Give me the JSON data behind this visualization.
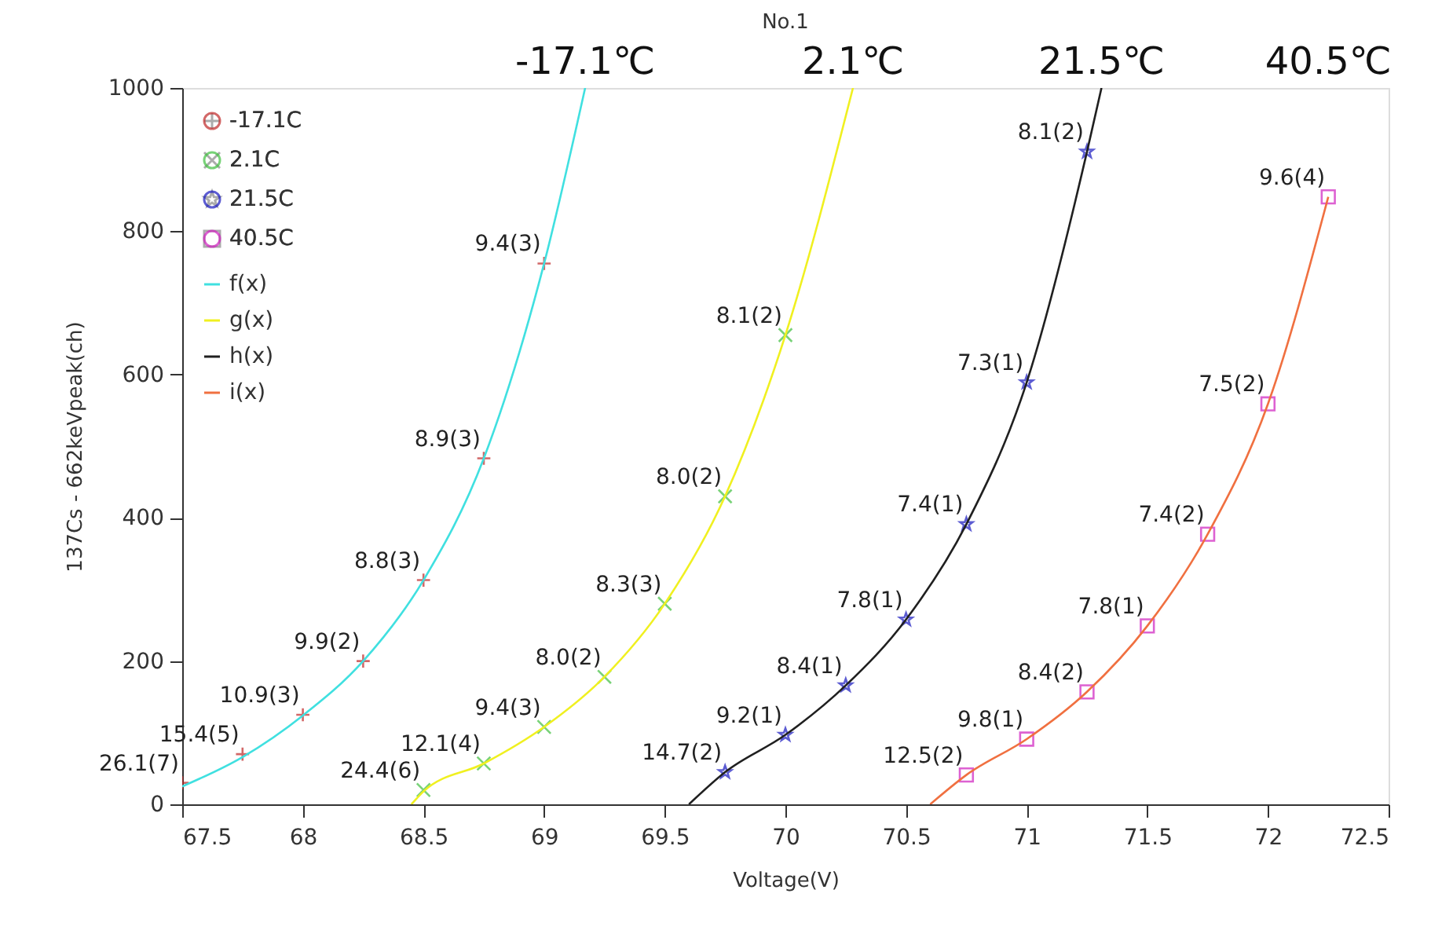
{
  "chart_data": {
    "type": "scatter",
    "title": "No.1",
    "xlabel": "Voltage(V)",
    "ylabel": "137Cs - 662keVpeak(ch)",
    "xlim": [
      67.5,
      72.5
    ],
    "xticks": [
      67.5,
      68,
      68.5,
      69,
      69.5,
      70,
      70.5,
      71,
      71.5,
      72,
      72.5
    ],
    "ylim": [
      0,
      1000
    ],
    "yticks": [
      0,
      200,
      400,
      600,
      800,
      1000
    ],
    "grid": false,
    "legend": "top left",
    "series": [
      {
        "name": "-17.1C",
        "marker": "cross",
        "color": "#c02828",
        "x": [
          67.5,
          67.75,
          68,
          68.25,
          68.5,
          68.75,
          69
        ],
        "values": [
          30,
          70,
          125,
          200,
          313,
          483,
          755
        ],
        "value_labels": [
          "26.1(7)",
          "15.4(5)",
          "10.9(3)",
          "9.9(2)",
          "8.8(3)",
          "8.9(3)",
          "9.4(3)"
        ]
      },
      {
        "name": "2.1C",
        "marker": "x",
        "color": "#40c040",
        "x": [
          68.5,
          68.75,
          69,
          69.25,
          69.5,
          69.75,
          70
        ],
        "values": [
          20,
          57,
          108,
          178,
          280,
          430,
          655
        ],
        "value_labels": [
          "24.4(6)",
          "12.1(4)",
          "9.4(3)",
          "8.0(2)",
          "8.3(3)",
          "8.0(2)",
          "8.1(2)"
        ]
      },
      {
        "name": "21.5C",
        "marker": "star",
        "color": "#1818c0",
        "x": [
          69.75,
          70,
          70.25,
          70.5,
          70.75,
          71,
          71.25
        ],
        "values": [
          45,
          97,
          166,
          258,
          391,
          589,
          911
        ],
        "value_labels": [
          "14.7(2)",
          "9.2(1)",
          "8.4(1)",
          "7.8(1)",
          "7.4(1)",
          "7.3(1)",
          "8.1(2)"
        ]
      },
      {
        "name": "40.5C",
        "marker": "square",
        "color": "#d020c0",
        "x": [
          70.75,
          71,
          71.25,
          71.5,
          71.75,
          72,
          72.25
        ],
        "values": [
          41,
          91,
          157,
          249,
          377,
          559,
          848
        ],
        "value_labels": [
          "12.5(2)",
          "9.8(1)",
          "8.4(2)",
          "7.8(1)",
          "7.4(2)",
          "7.5(2)",
          "9.6(4)"
        ]
      },
      {
        "name": "f(x)",
        "type": "line",
        "marker": "none",
        "line_style": "solid",
        "color": "#40e0e0",
        "x": [
          67.5,
          67.75,
          68,
          68.25,
          68.5,
          68.75,
          69,
          69.17
        ],
        "values": [
          25,
          66,
          124,
          200,
          313,
          483,
          755,
          1000
        ]
      },
      {
        "name": "g(x)",
        "type": "line",
        "marker": "none",
        "line_style": "solid",
        "color": "#f0f020",
        "x": [
          68.45,
          68.5,
          68.75,
          69,
          69.25,
          69.5,
          69.75,
          70,
          70.28
        ],
        "values": [
          0,
          18,
          57,
          108,
          178,
          280,
          430,
          655,
          1000
        ]
      },
      {
        "name": "h(x)",
        "type": "line",
        "marker": "none",
        "line_style": "solid",
        "color": "#202020",
        "x": [
          69.6,
          69.75,
          70,
          70.25,
          70.5,
          70.75,
          71,
          71.25,
          71.31
        ],
        "values": [
          0,
          45,
          97,
          166,
          258,
          391,
          589,
          911,
          1000
        ]
      },
      {
        "name": "i(x)",
        "type": "line",
        "marker": "none",
        "line_style": "solid",
        "color": "#f07040",
        "x": [
          70.6,
          70.75,
          71,
          71.25,
          71.5,
          71.75,
          72,
          72.25
        ],
        "values": [
          0,
          41,
          91,
          157,
          249,
          377,
          559,
          848
        ]
      }
    ],
    "annotations": [
      "-17.1℃",
      "2.1℃",
      "21.5℃",
      "40.5℃"
    ]
  }
}
